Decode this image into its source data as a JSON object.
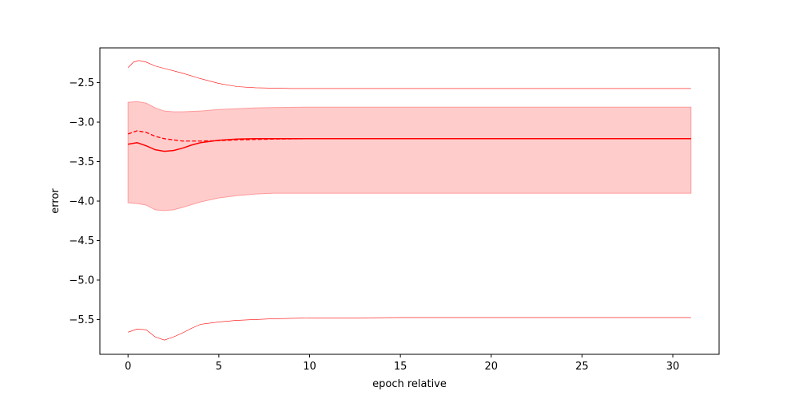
{
  "chart_data": {
    "type": "line",
    "title": "",
    "xlabel": "epoch relative",
    "ylabel": "error",
    "xlim": [
      -1.55,
      32.55
    ],
    "ylim": [
      -5.94,
      -2.06
    ],
    "x_ticks": [
      0,
      5,
      10,
      15,
      20,
      25,
      30
    ],
    "y_ticks": [
      -5.5,
      -5.0,
      -4.5,
      -4.0,
      -3.5,
      -3.0,
      -2.5
    ],
    "x_tick_labels": [
      "0",
      "5",
      "10",
      "15",
      "20",
      "25",
      "30"
    ],
    "y_tick_labels": [
      "−5.5",
      "−5.0",
      "−4.5",
      "−4.0",
      "−3.5",
      "−3.0",
      "−2.5"
    ],
    "grid": false,
    "legend": "none",
    "colors": {
      "line": "#ff0000",
      "band_fill": "#ffcccc",
      "band_edge": "#ff9a9a"
    },
    "series": [
      {
        "style": "solid",
        "x": [
          0,
          0.5,
          1,
          1.5,
          2,
          2.5,
          3,
          3.5,
          4,
          5,
          6,
          7,
          8,
          10,
          15,
          20,
          25,
          31
        ],
        "values": [
          -3.28,
          -3.26,
          -3.3,
          -3.35,
          -3.37,
          -3.36,
          -3.33,
          -3.29,
          -3.26,
          -3.23,
          -3.215,
          -3.21,
          -3.21,
          -3.21,
          -3.21,
          -3.21,
          -3.21,
          -3.21
        ]
      },
      {
        "style": "dashed",
        "x": [
          0,
          0.5,
          1,
          1.5,
          2,
          3,
          4,
          5,
          6,
          8,
          10,
          15,
          20,
          25,
          31
        ],
        "values": [
          -3.15,
          -3.11,
          -3.13,
          -3.18,
          -3.21,
          -3.24,
          -3.24,
          -3.235,
          -3.225,
          -3.215,
          -3.21,
          -3.21,
          -3.21,
          -3.21,
          -3.21
        ]
      },
      {
        "style": "thin-upper",
        "x": [
          0,
          0.3,
          0.6,
          1,
          1.5,
          2,
          3,
          4,
          5,
          6,
          7,
          8,
          9,
          10,
          15,
          20,
          25,
          31
        ],
        "values": [
          -2.31,
          -2.24,
          -2.22,
          -2.24,
          -2.29,
          -2.32,
          -2.38,
          -2.45,
          -2.51,
          -2.55,
          -2.565,
          -2.57,
          -2.575,
          -2.575,
          -2.575,
          -2.575,
          -2.575,
          -2.575
        ]
      },
      {
        "style": "thin-lower",
        "x": [
          0,
          0.5,
          1,
          1.5,
          2,
          2.5,
          3,
          3.5,
          4,
          5,
          6,
          7,
          8,
          9,
          10,
          12,
          15,
          20,
          25,
          31
        ],
        "values": [
          -5.66,
          -5.62,
          -5.63,
          -5.72,
          -5.76,
          -5.72,
          -5.67,
          -5.61,
          -5.56,
          -5.53,
          -5.51,
          -5.5,
          -5.49,
          -5.485,
          -5.48,
          -5.48,
          -5.475,
          -5.475,
          -5.475,
          -5.475
        ]
      }
    ],
    "band": {
      "x": [
        0,
        0.5,
        1,
        1.5,
        2,
        2.5,
        3,
        4,
        5,
        6,
        7,
        8,
        10,
        15,
        20,
        25,
        31
      ],
      "upper": [
        -2.75,
        -2.74,
        -2.76,
        -2.82,
        -2.86,
        -2.87,
        -2.87,
        -2.86,
        -2.84,
        -2.83,
        -2.82,
        -2.815,
        -2.81,
        -2.81,
        -2.81,
        -2.81,
        -2.81
      ],
      "lower": [
        -4.02,
        -4.03,
        -4.05,
        -4.11,
        -4.12,
        -4.11,
        -4.08,
        -4.01,
        -3.96,
        -3.93,
        -3.91,
        -3.9,
        -3.9,
        -3.9,
        -3.9,
        -3.9,
        -3.9
      ]
    }
  }
}
